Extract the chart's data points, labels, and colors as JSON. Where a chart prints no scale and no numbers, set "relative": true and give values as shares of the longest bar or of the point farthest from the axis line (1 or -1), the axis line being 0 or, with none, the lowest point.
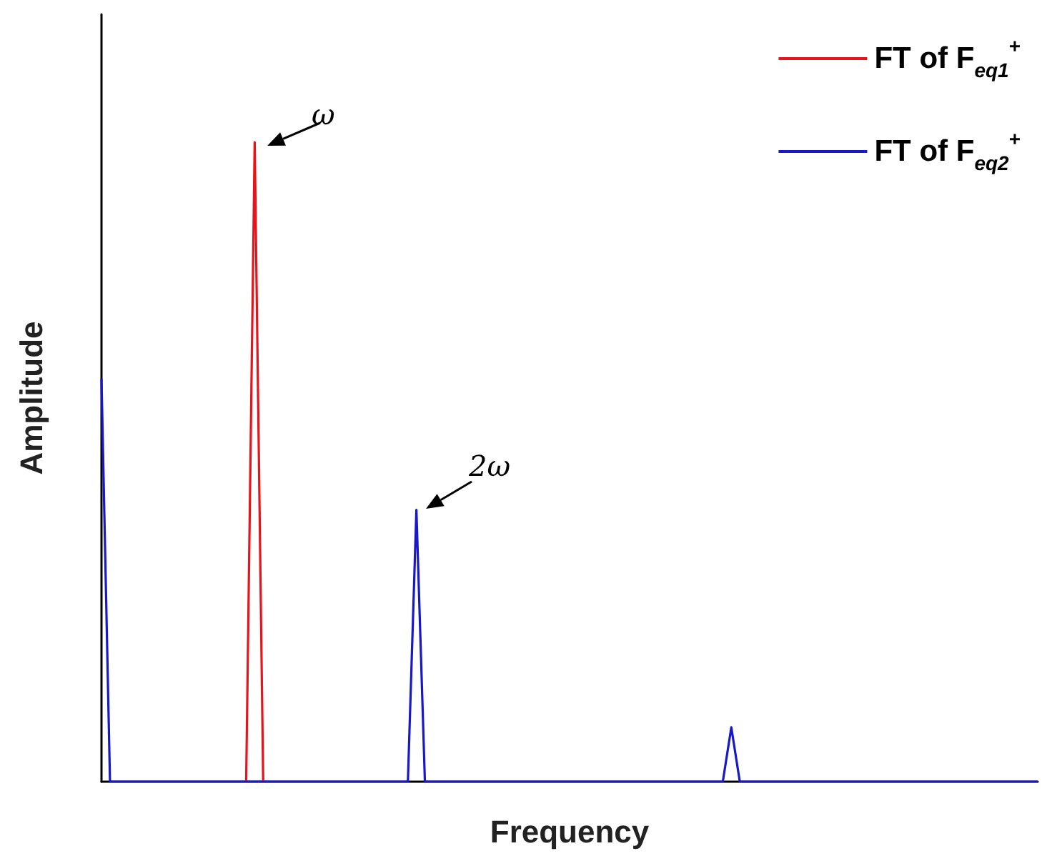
{
  "chart_data": {
    "type": "line",
    "relative": true,
    "xlabel": "Frequency",
    "ylabel": "Amplitude",
    "legend": "top right",
    "marker": "none",
    "annotations": [
      "ω",
      "2ω"
    ],
    "categories": [
      null,
      null,
      null,
      null,
      null,
      null,
      null,
      null,
      null,
      null,
      null,
      null,
      null,
      null,
      null,
      null,
      null,
      null,
      null,
      null,
      null,
      null,
      null,
      null,
      null,
      null,
      null,
      null,
      null,
      null,
      null,
      null,
      null,
      null,
      null,
      null,
      null,
      null,
      null,
      null,
      null,
      null,
      null,
      null,
      null,
      null,
      null,
      null,
      null,
      null,
      null,
      null,
      null,
      null,
      null,
      null,
      null,
      null,
      null,
      null,
      null,
      null,
      null,
      null,
      null,
      null,
      null,
      null,
      null,
      null,
      null,
      null,
      null,
      null,
      null,
      null,
      null,
      null,
      null,
      null,
      null,
      null,
      null,
      null,
      null,
      null,
      null,
      null,
      null,
      null,
      null,
      null,
      null,
      null,
      null,
      null,
      null,
      null,
      null,
      null,
      null,
      null,
      null,
      null,
      null,
      null,
      null,
      null,
      null,
      null,
      null
    ],
    "series": [
      {
        "name": "FT of F$_{eq1}$$^{+}$",
        "color": "#e8141c",
        "values": [
          null,
          null,
          null,
          null,
          null,
          null,
          null,
          null,
          null,
          null,
          null,
          null,
          null,
          null,
          null,
          null,
          null,
          0,
          1,
          0,
          null,
          null,
          null,
          null,
          null,
          null,
          null,
          null,
          null,
          null,
          null,
          null,
          null,
          null,
          null,
          null,
          null,
          null,
          null,
          null,
          null,
          null,
          null,
          null,
          null,
          null,
          null,
          null,
          null,
          null,
          null,
          null,
          null,
          null,
          null,
          null,
          null,
          null,
          null,
          null,
          null,
          null,
          null,
          null,
          null,
          null,
          null,
          null,
          null,
          null,
          null,
          null,
          null,
          null,
          null,
          null,
          null,
          null,
          null,
          null,
          null,
          null,
          null,
          null,
          null,
          null,
          null,
          null,
          null,
          null,
          null,
          null,
          null,
          null,
          null,
          null,
          null,
          null,
          null,
          null,
          null,
          null,
          null,
          null,
          null,
          null,
          null,
          null,
          null,
          null,
          null
        ]
      },
      {
        "name": "FT of F$_{eq2}$$^{+}$",
        "color": "#1818c8",
        "values": [
          0.63,
          0,
          0,
          0,
          0,
          0,
          0,
          0,
          0,
          0,
          0,
          0,
          0,
          0,
          0,
          0,
          0,
          0,
          0,
          0,
          0,
          0,
          0,
          0,
          0,
          0,
          0,
          0,
          0,
          0,
          0,
          0,
          0,
          0,
          0,
          0,
          0,
          0.425,
          0,
          0,
          0,
          0,
          0,
          0,
          0,
          0,
          0,
          0,
          0,
          0,
          0,
          0,
          0,
          0,
          0,
          0,
          0,
          0,
          0,
          0,
          0,
          0,
          0,
          0,
          0,
          0,
          0,
          0,
          0,
          0,
          0,
          0,
          0,
          0,
          0.085,
          0,
          0,
          0,
          0,
          0,
          0,
          0,
          0,
          0,
          0,
          0,
          0,
          0,
          0,
          0,
          0,
          0,
          0,
          0,
          0,
          0,
          0,
          0,
          0,
          0,
          0,
          0,
          0,
          0,
          0,
          0,
          0,
          0,
          0,
          0,
          0
        ]
      }
    ]
  }
}
